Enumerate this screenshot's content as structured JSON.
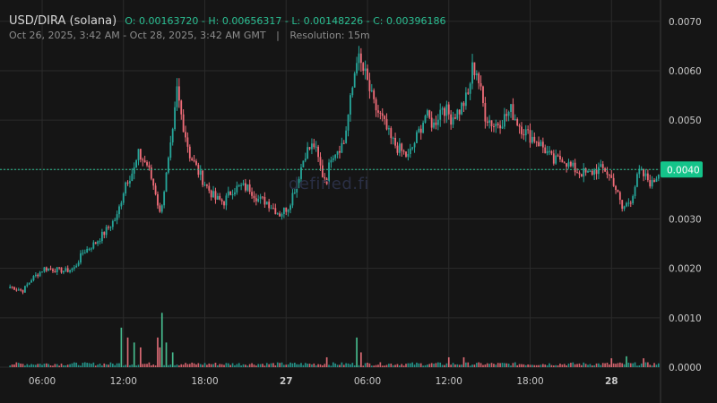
{
  "header": {
    "pair": "USD/DIRA (solana)",
    "ohlc": "O: 0.00163720 - H: 0.00656317 - L: 0.00148226 - C: 0.00396186",
    "range": "Oct 26, 2025, 3:42 AM - Oct 28, 2025, 3:42 AM GMT",
    "separator": "|",
    "resolution": "Resolution: 15m"
  },
  "watermark": "defined.fi",
  "colors": {
    "up": "#26a69a",
    "down": "#ef6c78",
    "up_bright": "#4fd8a3",
    "down_bright": "#ff7a86",
    "background": "#151515",
    "grid": "#2b2b2b",
    "price_tag": "#14c48a"
  },
  "current_price_label": "0.0040",
  "chart_data": {
    "type": "candlestick",
    "interval": "15m",
    "x_ticks": [
      "06:00",
      "12:00",
      "18:00",
      "27",
      "06:00",
      "12:00",
      "18:00",
      "28"
    ],
    "y_ticks": [
      "0.0070",
      "0.0060",
      "0.0050",
      "0.0040",
      "0.0030",
      "0.0020",
      "0.0010",
      "0.0000"
    ],
    "ylim": [
      0,
      0.00725
    ],
    "current_price": 0.004,
    "anchors": [
      [
        0,
        0.00163
      ],
      [
        6,
        0.00155
      ],
      [
        10,
        0.00178
      ],
      [
        16,
        0.002
      ],
      [
        26,
        0.00195
      ],
      [
        30,
        0.002
      ],
      [
        34,
        0.00232
      ],
      [
        40,
        0.00252
      ],
      [
        44,
        0.00272
      ],
      [
        50,
        0.00305
      ],
      [
        54,
        0.00375
      ],
      [
        58,
        0.004
      ],
      [
        60,
        0.0043
      ],
      [
        64,
        0.0041
      ],
      [
        68,
        0.00355
      ],
      [
        70,
        0.0031
      ],
      [
        72,
        0.0036
      ],
      [
        76,
        0.0047
      ],
      [
        78,
        0.0056
      ],
      [
        80,
        0.0051
      ],
      [
        84,
        0.0043
      ],
      [
        88,
        0.00395
      ],
      [
        92,
        0.00365
      ],
      [
        96,
        0.0034
      ],
      [
        100,
        0.00335
      ],
      [
        104,
        0.0036
      ],
      [
        108,
        0.00365
      ],
      [
        112,
        0.00362
      ],
      [
        116,
        0.0034
      ],
      [
        120,
        0.00335
      ],
      [
        124,
        0.00318
      ],
      [
        126,
        0.0031
      ],
      [
        130,
        0.00325
      ],
      [
        134,
        0.00375
      ],
      [
        138,
        0.00435
      ],
      [
        142,
        0.0045
      ],
      [
        146,
        0.0039
      ],
      [
        148,
        0.0038
      ],
      [
        150,
        0.0043
      ],
      [
        156,
        0.00455
      ],
      [
        160,
        0.00565
      ],
      [
        162,
        0.0063
      ],
      [
        166,
        0.0059
      ],
      [
        170,
        0.0053
      ],
      [
        174,
        0.005
      ],
      [
        178,
        0.0046
      ],
      [
        182,
        0.0044
      ],
      [
        186,
        0.00425
      ],
      [
        190,
        0.00465
      ],
      [
        194,
        0.0051
      ],
      [
        198,
        0.0049
      ],
      [
        202,
        0.0053
      ],
      [
        206,
        0.00505
      ],
      [
        210,
        0.0052
      ],
      [
        214,
        0.0055
      ],
      [
        216,
        0.00605
      ],
      [
        218,
        0.006
      ],
      [
        222,
        0.0051
      ],
      [
        226,
        0.0049
      ],
      [
        230,
        0.005
      ],
      [
        234,
        0.0052
      ],
      [
        238,
        0.0049
      ],
      [
        242,
        0.0047
      ],
      [
        246,
        0.0046
      ],
      [
        250,
        0.0044
      ],
      [
        254,
        0.00415
      ],
      [
        258,
        0.00425
      ],
      [
        262,
        0.00405
      ],
      [
        266,
        0.00395
      ],
      [
        270,
        0.0039
      ],
      [
        274,
        0.004
      ],
      [
        278,
        0.004
      ],
      [
        282,
        0.00375
      ],
      [
        286,
        0.0032
      ],
      [
        290,
        0.0034
      ],
      [
        294,
        0.00395
      ],
      [
        298,
        0.0038
      ],
      [
        300,
        0.0037
      ],
      [
        303,
        0.00396
      ]
    ],
    "volume_spikes": [
      [
        52,
        0.0008
      ],
      [
        55,
        0.0006
      ],
      [
        58,
        0.0005
      ],
      [
        61,
        0.0004
      ],
      [
        69,
        0.0006
      ],
      [
        70,
        0.0004
      ],
      [
        71,
        0.0011
      ],
      [
        73,
        0.0005
      ],
      [
        76,
        0.0003
      ],
      [
        148,
        0.0002
      ],
      [
        162,
        0.0006
      ],
      [
        164,
        0.0003
      ],
      [
        205,
        0.0002
      ],
      [
        212,
        0.0002
      ],
      [
        281,
        0.00018
      ],
      [
        288,
        0.00022
      ],
      [
        296,
        0.00018
      ]
    ]
  }
}
